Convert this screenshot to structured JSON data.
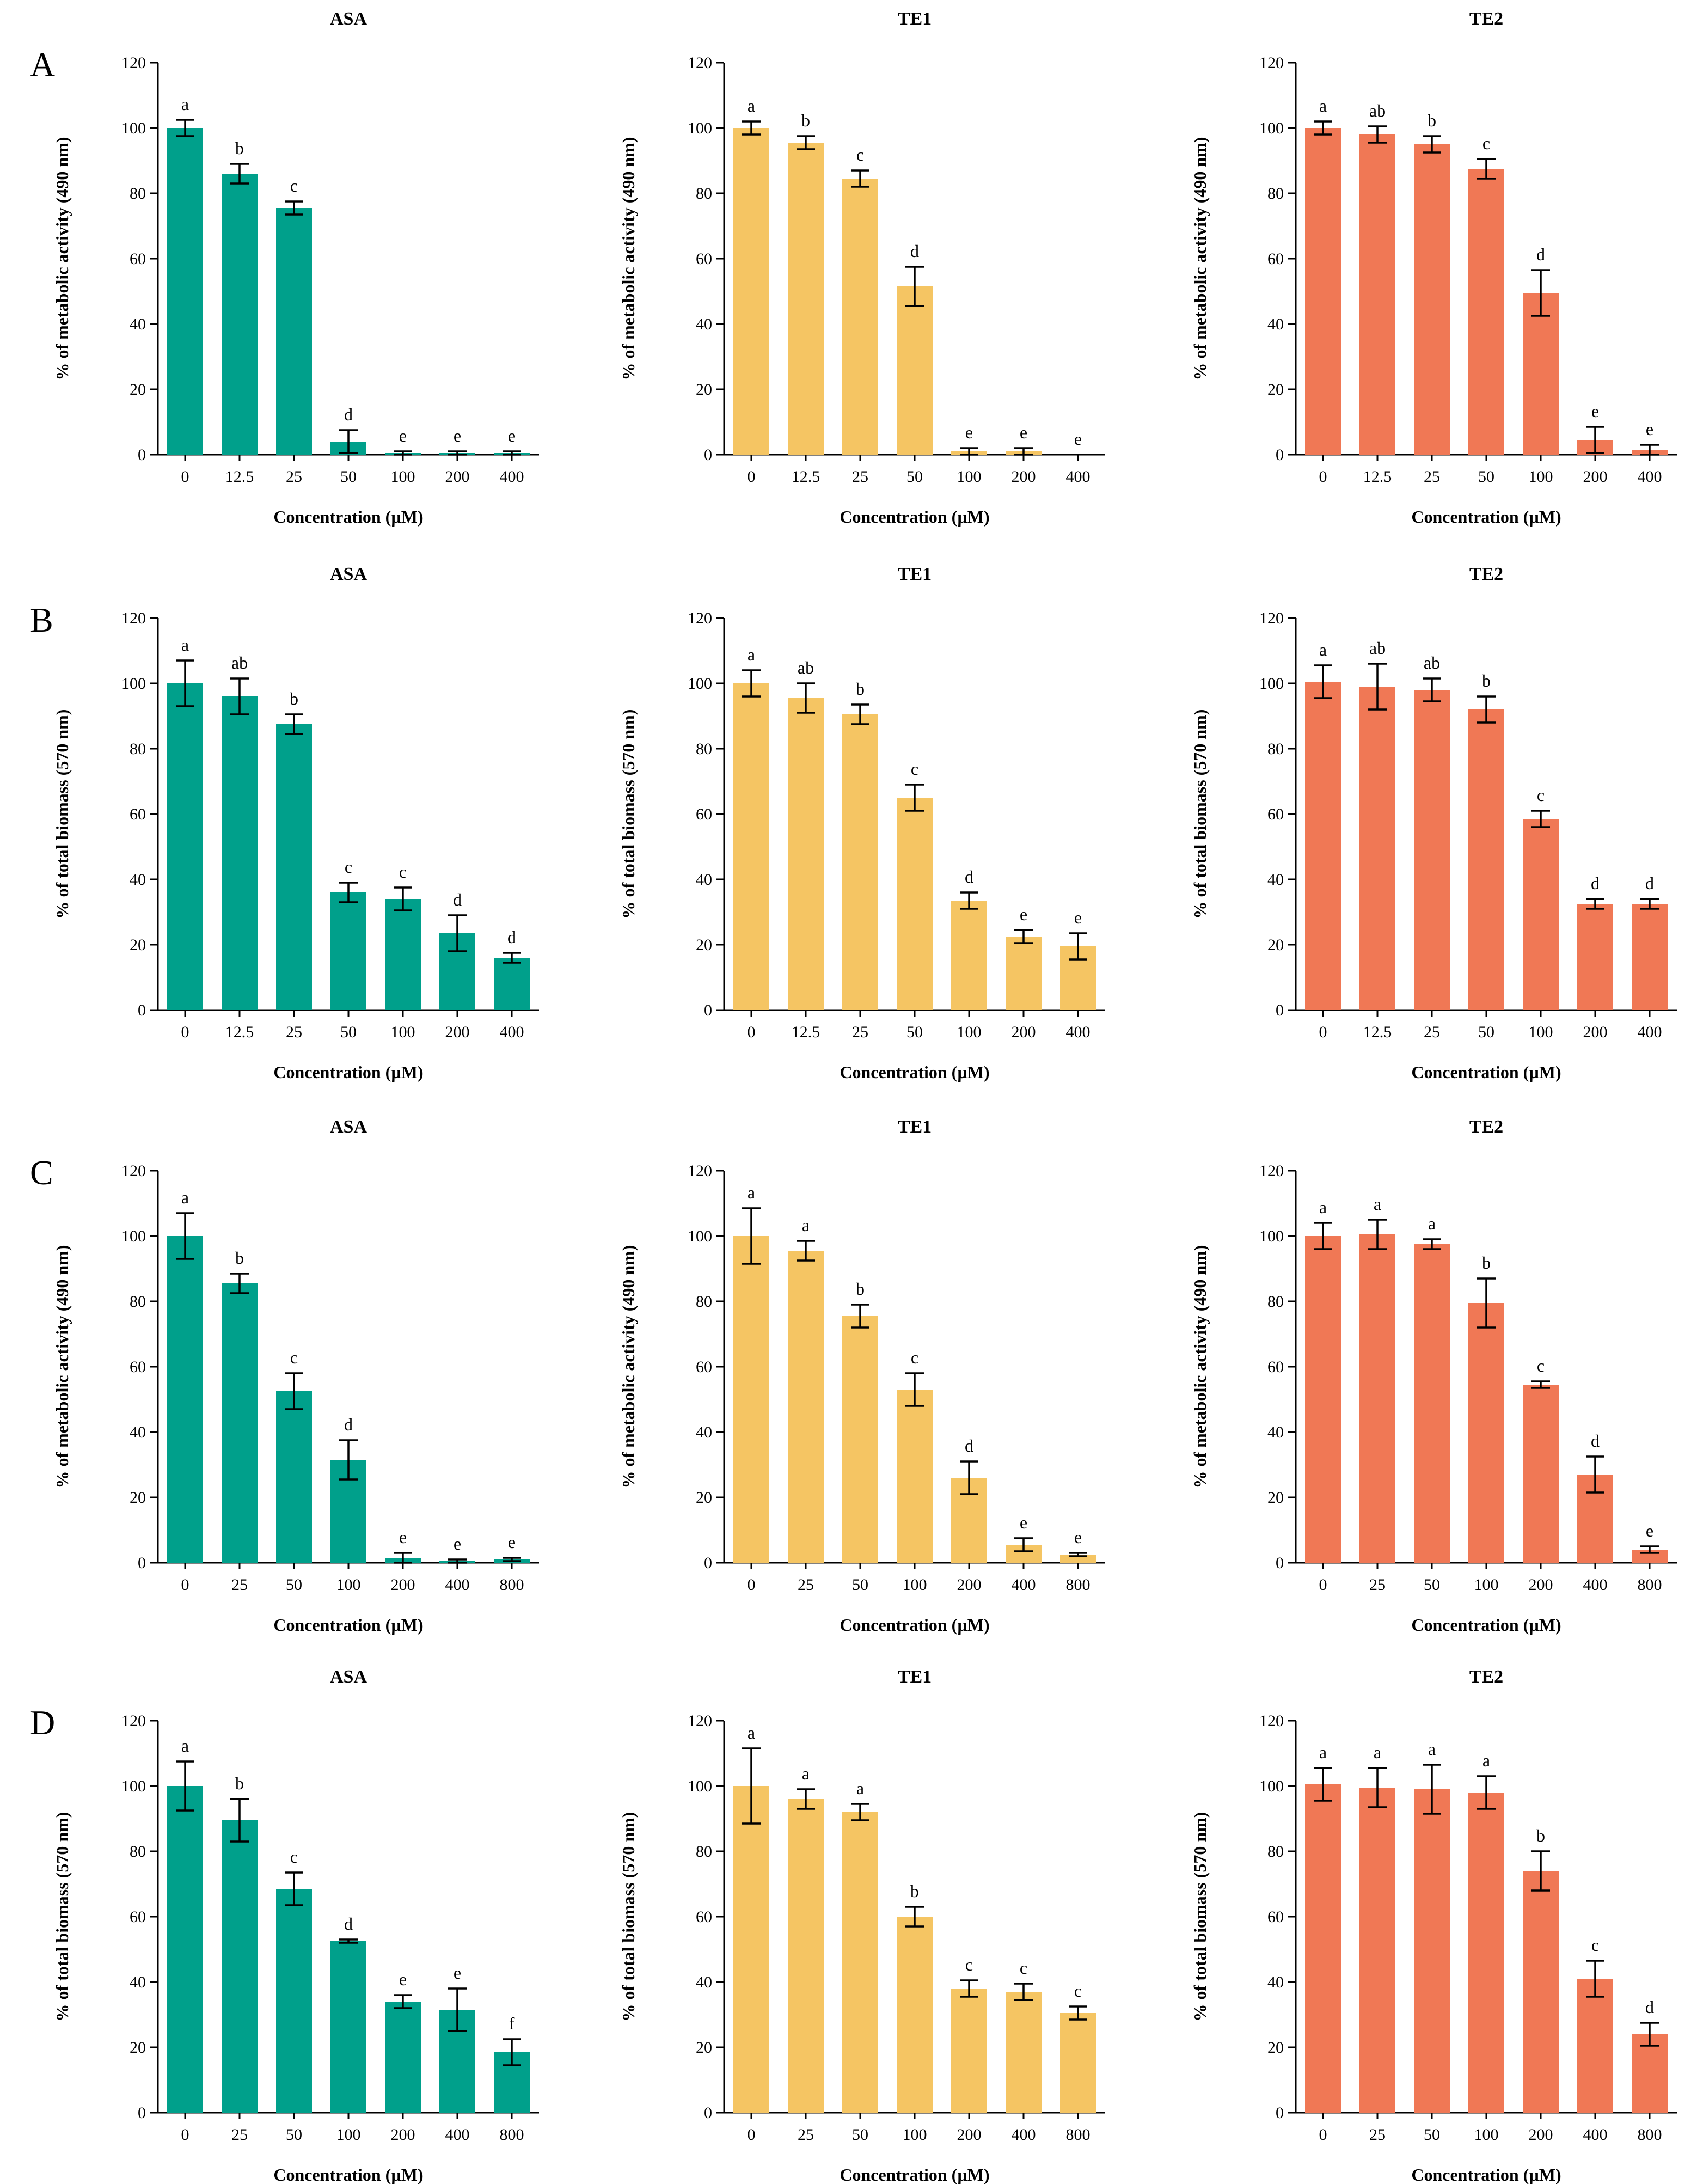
{
  "figure": {
    "colors": {
      "ASA": "#00a08b",
      "TE1": "#f5c563",
      "TE2": "#f07855"
    },
    "rows": [
      {
        "letter": "A",
        "ylabel": "% of metabolic activity (490 nm)",
        "xlabel": "Concentration (µM)",
        "panels": [
          {
            "title": "ASA",
            "color_key": "ASA"
          },
          {
            "title": "TE1",
            "color_key": "TE1"
          },
          {
            "title": "TE2",
            "color_key": "TE2"
          }
        ]
      },
      {
        "letter": "B",
        "ylabel": "% of total biomass (570 nm)",
        "xlabel": "Concentration (µM)",
        "panels": [
          {
            "title": "ASA",
            "color_key": "ASA"
          },
          {
            "title": "TE1",
            "color_key": "TE1"
          },
          {
            "title": "TE2",
            "color_key": "TE2"
          }
        ]
      },
      {
        "letter": "C",
        "ylabel": "% of metabolic activity (490 nm)",
        "xlabel": "Concentration (µM)",
        "panels": [
          {
            "title": "ASA",
            "color_key": "ASA"
          },
          {
            "title": "TE1",
            "color_key": "TE1"
          },
          {
            "title": "TE2",
            "color_key": "TE2"
          }
        ]
      },
      {
        "letter": "D",
        "ylabel": "% of total biomass (570 nm)",
        "xlabel": "Concentration (µM)",
        "panels": [
          {
            "title": "ASA",
            "color_key": "ASA"
          },
          {
            "title": "TE1",
            "color_key": "TE1"
          },
          {
            "title": "TE2",
            "color_key": "TE2"
          }
        ]
      }
    ]
  },
  "chart_data": [
    {
      "row": "A",
      "type": "bar",
      "title": "ASA",
      "xlabel": "Concentration (µM)",
      "ylabel": "% of metabolic activity (490 nm)",
      "ylim": [
        0,
        120
      ],
      "yticks": [
        0,
        20,
        40,
        60,
        80,
        100,
        120
      ],
      "categories": [
        "0",
        "12.5",
        "25",
        "50",
        "100",
        "200",
        "400"
      ],
      "values": [
        100,
        86,
        75.5,
        4,
        0.5,
        0.5,
        0.5
      ],
      "errors": [
        2.5,
        3,
        2,
        3.5,
        0.5,
        0.5,
        0.5
      ],
      "significance": [
        "a",
        "b",
        "c",
        "d",
        "e",
        "e",
        "e"
      ]
    },
    {
      "row": "A",
      "type": "bar",
      "title": "TE1",
      "xlabel": "Concentration (µM)",
      "ylabel": "% of metabolic activity (490 nm)",
      "ylim": [
        0,
        120
      ],
      "yticks": [
        0,
        20,
        40,
        60,
        80,
        100,
        120
      ],
      "categories": [
        "0",
        "12.5",
        "25",
        "50",
        "100",
        "200",
        "400"
      ],
      "values": [
        100,
        95.5,
        84.5,
        51.5,
        1,
        1,
        0
      ],
      "errors": [
        2,
        2,
        2.5,
        6,
        1,
        1,
        0
      ],
      "significance": [
        "a",
        "b",
        "c",
        "d",
        "e",
        "e",
        "e"
      ]
    },
    {
      "row": "A",
      "type": "bar",
      "title": "TE2",
      "xlabel": "Concentration (µM)",
      "ylabel": "% of metabolic activity (490 nm)",
      "ylim": [
        0,
        120
      ],
      "yticks": [
        0,
        20,
        40,
        60,
        80,
        100,
        120
      ],
      "categories": [
        "0",
        "12.5",
        "25",
        "50",
        "100",
        "200",
        "400"
      ],
      "values": [
        100,
        98,
        95,
        87.5,
        49.5,
        4.5,
        1.5
      ],
      "errors": [
        2,
        2.5,
        2.5,
        3,
        7,
        4,
        1.5
      ],
      "significance": [
        "a",
        "ab",
        "b",
        "c",
        "d",
        "e",
        "e"
      ]
    },
    {
      "row": "B",
      "type": "bar",
      "title": "ASA",
      "xlabel": "Concentration (µM)",
      "ylabel": "% of total biomass (570 nm)",
      "ylim": [
        0,
        120
      ],
      "yticks": [
        0,
        20,
        40,
        60,
        80,
        100,
        120
      ],
      "categories": [
        "0",
        "12.5",
        "25",
        "50",
        "100",
        "200",
        "400"
      ],
      "values": [
        100,
        96,
        87.5,
        36,
        34,
        23.5,
        16
      ],
      "errors": [
        7,
        5.5,
        3,
        3,
        3.5,
        5.5,
        1.5
      ],
      "significance": [
        "a",
        "ab",
        "b",
        "c",
        "c",
        "d",
        "d"
      ]
    },
    {
      "row": "B",
      "type": "bar",
      "title": "TE1",
      "xlabel": "Concentration (µM)",
      "ylabel": "% of total biomass (570 nm)",
      "ylim": [
        0,
        120
      ],
      "yticks": [
        0,
        20,
        40,
        60,
        80,
        100,
        120
      ],
      "categories": [
        "0",
        "12.5",
        "25",
        "50",
        "100",
        "200",
        "400"
      ],
      "values": [
        100,
        95.5,
        90.5,
        65,
        33.5,
        22.5,
        19.5
      ],
      "errors": [
        4,
        4.5,
        3,
        4,
        2.5,
        2,
        4
      ],
      "significance": [
        "a",
        "ab",
        "b",
        "c",
        "d",
        "e",
        "e"
      ]
    },
    {
      "row": "B",
      "type": "bar",
      "title": "TE2",
      "xlabel": "Concentration (µM)",
      "ylabel": "% of total biomass (570 nm)",
      "ylim": [
        0,
        120
      ],
      "yticks": [
        0,
        20,
        40,
        60,
        80,
        100,
        120
      ],
      "categories": [
        "0",
        "12.5",
        "25",
        "50",
        "100",
        "200",
        "400"
      ],
      "values": [
        100.5,
        99,
        98,
        92,
        58.5,
        32.5,
        32.5
      ],
      "errors": [
        5,
        7,
        3.5,
        4,
        2.5,
        1.5,
        1.5
      ],
      "significance": [
        "a",
        "ab",
        "ab",
        "b",
        "c",
        "d",
        "d"
      ]
    },
    {
      "row": "C",
      "type": "bar",
      "title": "ASA",
      "xlabel": "Concentration (µM)",
      "ylabel": "% of metabolic activity (490 nm)",
      "ylim": [
        0,
        120
      ],
      "yticks": [
        0,
        20,
        40,
        60,
        80,
        100,
        120
      ],
      "categories": [
        "0",
        "25",
        "50",
        "100",
        "200",
        "400",
        "800"
      ],
      "values": [
        100,
        85.5,
        52.5,
        31.5,
        1.5,
        0.5,
        1
      ],
      "errors": [
        7,
        3,
        5.5,
        6,
        1.5,
        0.5,
        0.5
      ],
      "significance": [
        "a",
        "b",
        "c",
        "d",
        "e",
        "e",
        "e"
      ]
    },
    {
      "row": "C",
      "type": "bar",
      "title": "TE1",
      "xlabel": "Concentration (µM)",
      "ylabel": "% of metabolic activity (490 nm)",
      "ylim": [
        0,
        120
      ],
      "yticks": [
        0,
        20,
        40,
        60,
        80,
        100,
        120
      ],
      "categories": [
        "0",
        "25",
        "50",
        "100",
        "200",
        "400",
        "800"
      ],
      "values": [
        100,
        95.5,
        75.5,
        53,
        26,
        5.5,
        2.5
      ],
      "errors": [
        8.5,
        3,
        3.5,
        5,
        5,
        2,
        0.5
      ],
      "significance": [
        "a",
        "a",
        "b",
        "c",
        "d",
        "e",
        "e"
      ]
    },
    {
      "row": "C",
      "type": "bar",
      "title": "TE2",
      "xlabel": "Concentration (µM)",
      "ylabel": "% of metabolic activity (490 nm)",
      "ylim": [
        0,
        120
      ],
      "yticks": [
        0,
        20,
        40,
        60,
        80,
        100,
        120
      ],
      "categories": [
        "0",
        "25",
        "50",
        "100",
        "200",
        "400",
        "800"
      ],
      "values": [
        100,
        100.5,
        97.5,
        79.5,
        54.5,
        27,
        4
      ],
      "errors": [
        4,
        4.5,
        1.5,
        7.5,
        1,
        5.5,
        1
      ],
      "significance": [
        "a",
        "a",
        "a",
        "b",
        "c",
        "d",
        "e"
      ]
    },
    {
      "row": "D",
      "type": "bar",
      "title": "ASA",
      "xlabel": "Concentration (µM)",
      "ylabel": "% of total biomass (570 nm)",
      "ylim": [
        0,
        120
      ],
      "yticks": [
        0,
        20,
        40,
        60,
        80,
        100,
        120
      ],
      "categories": [
        "0",
        "25",
        "50",
        "100",
        "200",
        "400",
        "800"
      ],
      "values": [
        100,
        89.5,
        68.5,
        52.5,
        34,
        31.5,
        18.5
      ],
      "errors": [
        7.5,
        6.5,
        5,
        0.5,
        2,
        6.5,
        4
      ],
      "significance": [
        "a",
        "b",
        "c",
        "d",
        "e",
        "e",
        "f"
      ]
    },
    {
      "row": "D",
      "type": "bar",
      "title": "TE1",
      "xlabel": "Concentration (µM)",
      "ylabel": "% of total biomass (570 nm)",
      "ylim": [
        0,
        120
      ],
      "yticks": [
        0,
        20,
        40,
        60,
        80,
        100,
        120
      ],
      "categories": [
        "0",
        "25",
        "50",
        "100",
        "200",
        "400",
        "800"
      ],
      "values": [
        100,
        96,
        92,
        60,
        38,
        37,
        30.5
      ],
      "errors": [
        11.5,
        3,
        2.5,
        3,
        2.5,
        2.5,
        2
      ],
      "significance": [
        "a",
        "a",
        "a",
        "b",
        "c",
        "c",
        "c"
      ]
    },
    {
      "row": "D",
      "type": "bar",
      "title": "TE2",
      "xlabel": "Concentration (µM)",
      "ylabel": "% of total biomass (570 nm)",
      "ylim": [
        0,
        120
      ],
      "yticks": [
        0,
        20,
        40,
        60,
        80,
        100,
        120
      ],
      "categories": [
        "0",
        "25",
        "50",
        "100",
        "200",
        "400",
        "800"
      ],
      "values": [
        100.5,
        99.5,
        99,
        98,
        74,
        41,
        24
      ],
      "errors": [
        5,
        6,
        7.5,
        5,
        6,
        5.5,
        3.5
      ],
      "significance": [
        "a",
        "a",
        "a",
        "a",
        "b",
        "c",
        "d"
      ]
    }
  ]
}
